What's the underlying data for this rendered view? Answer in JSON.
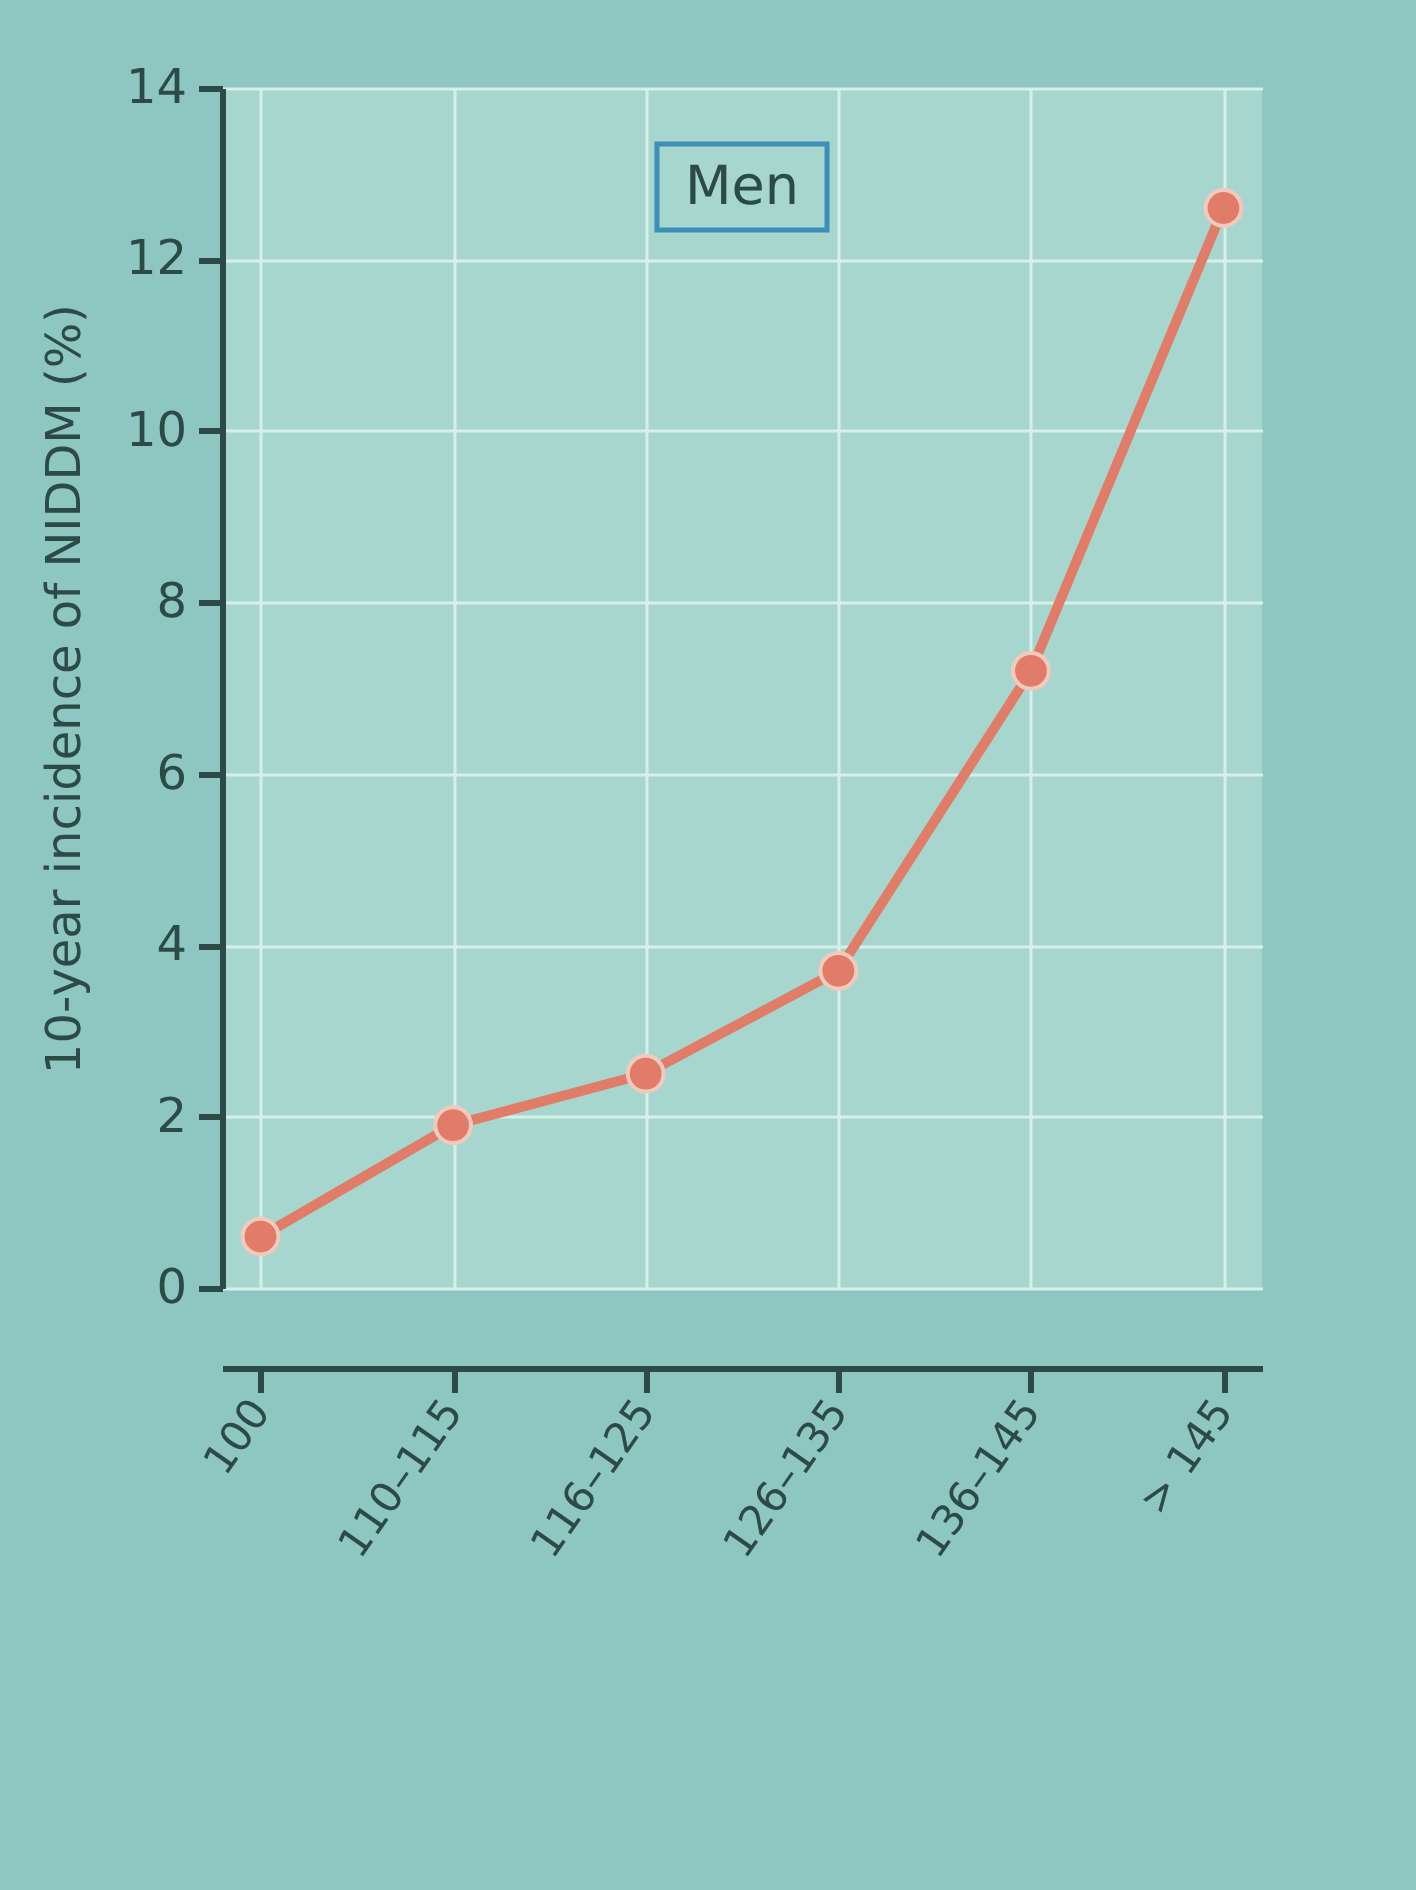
{
  "chart_data": {
    "type": "line",
    "ylabel": "10-year incidence of NIDDM (%)",
    "categories": [
      "100",
      "110–115",
      "116–125",
      "126–135",
      "136–145",
      "> 145"
    ],
    "series": [
      {
        "color": "#e07c68",
        "values": [
          0.6,
          1.9,
          2.5,
          3.7,
          7.2,
          12.6
        ]
      }
    ],
    "ylim": [
      0,
      14
    ],
    "yticks": [
      0,
      2,
      4,
      6,
      8,
      10,
      12,
      14
    ],
    "grid": true,
    "marker": "circle",
    "annotations": [
      "Men"
    ]
  }
}
